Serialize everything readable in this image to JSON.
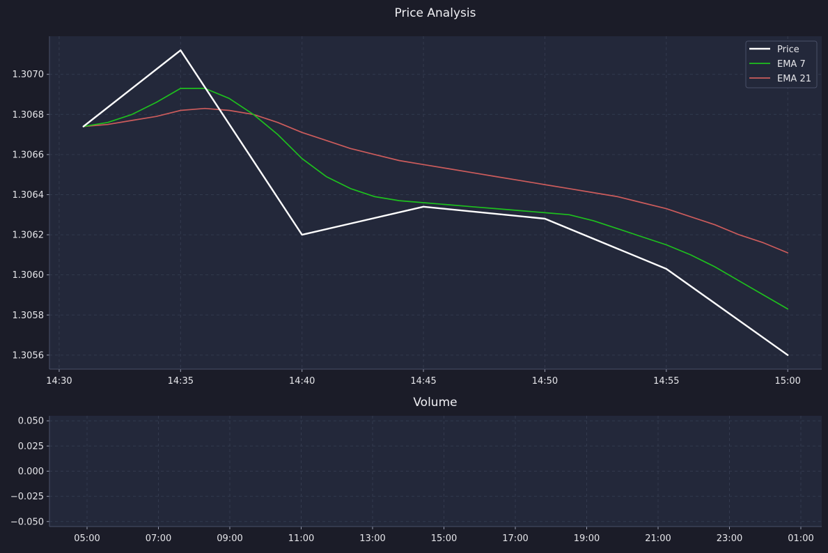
{
  "colors": {
    "background": "#1b1c28",
    "panel": "#23283a",
    "grid": "#333a4e",
    "spine": "#4a5068",
    "text": "#e6e6ea"
  },
  "chart_data": [
    {
      "type": "line",
      "title": "Price Analysis",
      "xlabel": "",
      "ylabel": "",
      "xlim": [
        "14:29:36",
        "15:01:24"
      ],
      "ylim": [
        1.30553,
        1.30719
      ],
      "grid": true,
      "legend": "top-right",
      "x_ticks": [
        "14:30",
        "14:35",
        "14:40",
        "14:45",
        "14:50",
        "14:55",
        "15:00"
      ],
      "y_ticks": [
        "1.3056",
        "1.3058",
        "1.3060",
        "1.3062",
        "1.3064",
        "1.3066",
        "1.3068",
        "1.3070"
      ],
      "y_tick_values": [
        1.3056,
        1.3058,
        1.306,
        1.3062,
        1.3064,
        1.3066,
        1.3068,
        1.307
      ],
      "series": [
        {
          "name": "Price",
          "color": "#ffffff",
          "x": [
            "14:31",
            "14:35",
            "14:40",
            "14:45",
            "14:50",
            "14:55",
            "15:00"
          ],
          "values": [
            1.30674,
            1.30712,
            1.3062,
            1.30634,
            1.30628,
            1.30603,
            1.3056
          ]
        },
        {
          "name": "EMA 7",
          "color": "#1ec01e",
          "x": [
            "14:31",
            "14:32",
            "14:33",
            "14:34",
            "14:35",
            "14:36",
            "14:37",
            "14:38",
            "14:39",
            "14:40",
            "14:41",
            "14:42",
            "14:43",
            "14:44",
            "14:45",
            "14:46",
            "14:47",
            "14:48",
            "14:49",
            "14:50",
            "14:51",
            "14:52",
            "14:53",
            "14:54",
            "14:55",
            "14:56",
            "14:57",
            "14:58",
            "14:59",
            "15:00"
          ],
          "values": [
            1.30674,
            1.30676,
            1.3068,
            1.30686,
            1.30693,
            1.30693,
            1.30688,
            1.3068,
            1.3067,
            1.30658,
            1.30649,
            1.30643,
            1.30639,
            1.30637,
            1.30636,
            1.30635,
            1.30634,
            1.30633,
            1.30632,
            1.30631,
            1.3063,
            1.30627,
            1.30623,
            1.30619,
            1.30615,
            1.3061,
            1.30604,
            1.30597,
            1.3059,
            1.30583
          ]
        },
        {
          "name": "EMA 21",
          "color": "#cd5c5c",
          "x": [
            "14:31",
            "14:32",
            "14:33",
            "14:34",
            "14:35",
            "14:36",
            "14:37",
            "14:38",
            "14:39",
            "14:40",
            "14:41",
            "14:42",
            "14:43",
            "14:44",
            "14:45",
            "14:46",
            "14:47",
            "14:48",
            "14:49",
            "14:50",
            "14:51",
            "14:52",
            "14:53",
            "14:54",
            "14:55",
            "14:56",
            "14:57",
            "14:58",
            "14:59",
            "15:00"
          ],
          "values": [
            1.30674,
            1.30675,
            1.30677,
            1.30679,
            1.30682,
            1.30683,
            1.30682,
            1.3068,
            1.30676,
            1.30671,
            1.30667,
            1.30663,
            1.3066,
            1.30657,
            1.30655,
            1.30653,
            1.30651,
            1.30649,
            1.30647,
            1.30645,
            1.30643,
            1.30641,
            1.30639,
            1.30636,
            1.30633,
            1.30629,
            1.30625,
            1.3062,
            1.30616,
            1.30611
          ]
        }
      ]
    },
    {
      "type": "bar",
      "title": "Volume",
      "xlabel": "",
      "ylabel": "",
      "ylim": [
        -0.055,
        0.055
      ],
      "grid": true,
      "x_ticks": [
        "05:00",
        "07:00",
        "09:00",
        "11:00",
        "13:00",
        "15:00",
        "17:00",
        "19:00",
        "21:00",
        "23:00",
        "01:00"
      ],
      "y_ticks": [
        "0.050",
        "0.025",
        "0.000",
        "−0.025",
        "−0.050"
      ],
      "y_tick_values": [
        0.05,
        0.025,
        0.0,
        -0.025,
        -0.05
      ],
      "values": []
    }
  ]
}
